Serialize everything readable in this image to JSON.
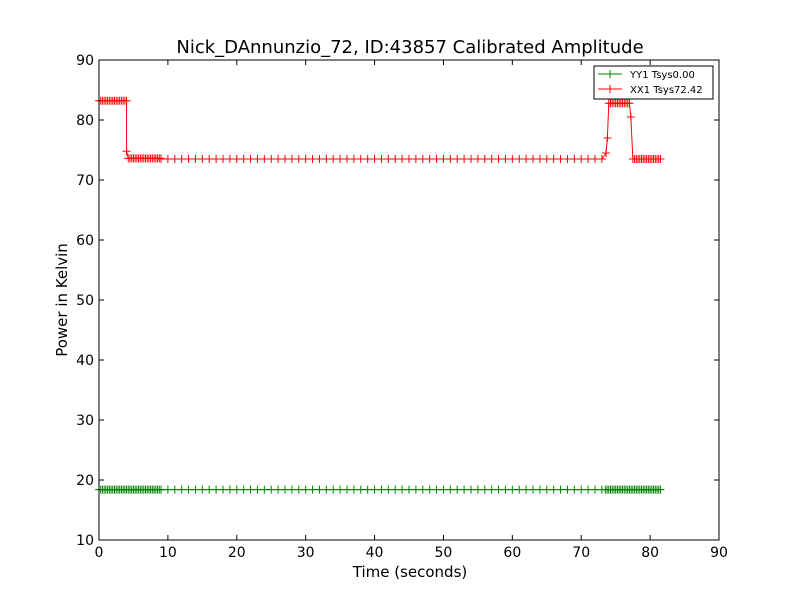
{
  "chart_data": {
    "type": "line",
    "title": "Nick_DAnnunzio_72, ID:43857 Calibrated Amplitude",
    "xlabel": "Time (seconds)",
    "ylabel": "Power in Kelvin",
    "xlim": [
      0,
      90
    ],
    "ylim": [
      10,
      90
    ],
    "xticks": [
      0,
      10,
      20,
      30,
      40,
      50,
      60,
      70,
      80,
      90
    ],
    "yticks": [
      10,
      20,
      30,
      40,
      50,
      60,
      70,
      80,
      90
    ],
    "grid": false,
    "legend_position": "top-right",
    "series": [
      {
        "name": "YY1 Tsys0.00",
        "color": "#008000",
        "marker": "+",
        "segments": [
          {
            "x_start": 0.0,
            "x_end": 9.0,
            "step": 0.25,
            "y": 18.4
          },
          {
            "x_start": 9.0,
            "x_end": 73.5,
            "step": 1.0,
            "y": 18.4
          },
          {
            "x_start": 73.5,
            "x_end": 81.5,
            "step": 0.25,
            "y": 18.4
          }
        ]
      },
      {
        "name": "XX1 Tsys72.42",
        "color": "#ff0000",
        "marker": "+",
        "segments": [
          {
            "x_start": 0.0,
            "x_end": 4.0,
            "step": 0.25,
            "y": 83.2
          },
          {
            "x_start": 4.25,
            "x_end": 9.0,
            "step": 0.25,
            "y": 73.6
          },
          {
            "x_start": 9.0,
            "x_end": 73.5,
            "step": 1.0,
            "y": 73.5
          },
          {
            "x_start": 74.0,
            "x_end": 77.0,
            "step": 0.25,
            "y": 82.8
          },
          {
            "x_start": 77.5,
            "x_end": 81.5,
            "step": 0.25,
            "y": 73.5
          }
        ],
        "transitions": [
          {
            "x": 4.0,
            "y": 74.8
          },
          {
            "x": 73.6,
            "y": 74.5
          },
          {
            "x": 73.8,
            "y": 77.0
          },
          {
            "x": 77.2,
            "y": 80.5
          }
        ]
      }
    ]
  }
}
